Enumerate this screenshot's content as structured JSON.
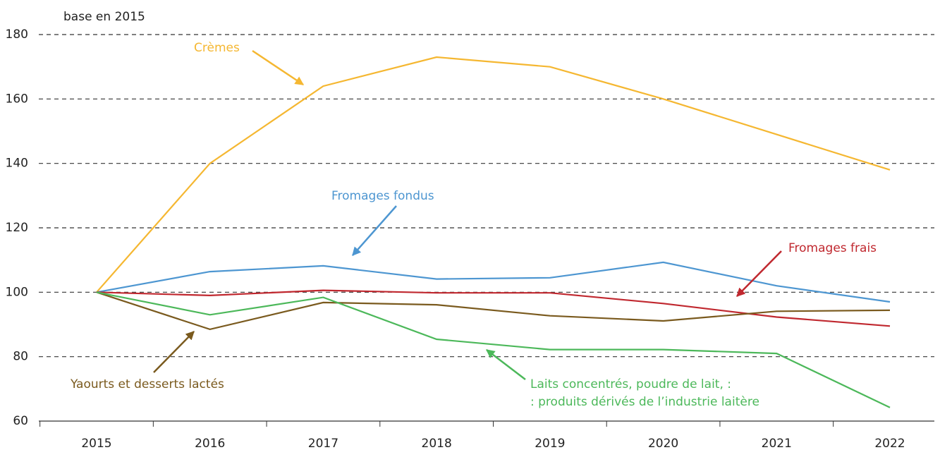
{
  "chart_data": {
    "type": "line",
    "y_label": "base en 2015",
    "categories": [
      "2015",
      "2016",
      "2017",
      "2018",
      "2019",
      "2020",
      "2021",
      "2022"
    ],
    "series": [
      {
        "label": [
          "Crèmes"
        ],
        "color": "#f5b731",
        "values": [
          100,
          140,
          164,
          173,
          170,
          160,
          149,
          138
        ]
      },
      {
        "label": [
          "Fromages fondus"
        ],
        "color": "#4d96d1",
        "values": [
          100,
          106.4,
          108.2,
          104.1,
          104.5,
          109.3,
          102,
          97
        ]
      },
      {
        "label": [
          "Fromages frais"
        ],
        "color": "#c0282f",
        "values": [
          100,
          99,
          100.6,
          99.8,
          99.8,
          96.5,
          92.3,
          89.5
        ]
      },
      {
        "label": [
          "Yaourts et desserts lactés"
        ],
        "color": "#7a5a1e",
        "values": [
          100,
          88.5,
          96.8,
          96.1,
          92.7,
          91.1,
          94.1,
          94.4
        ]
      },
      {
        "label": [
          "Laits concentrés, poudre de lait, :",
          ": produits dérivés de l’industrie laitère"
        ],
        "color": "#4cb85a",
        "values": [
          100,
          93,
          98.4,
          85.4,
          82.2,
          82.2,
          81,
          64.2
        ]
      }
    ],
    "ylim": [
      60,
      180
    ],
    "yticks": [
      60,
      80,
      100,
      120,
      140,
      160,
      180
    ],
    "grid": true
  }
}
